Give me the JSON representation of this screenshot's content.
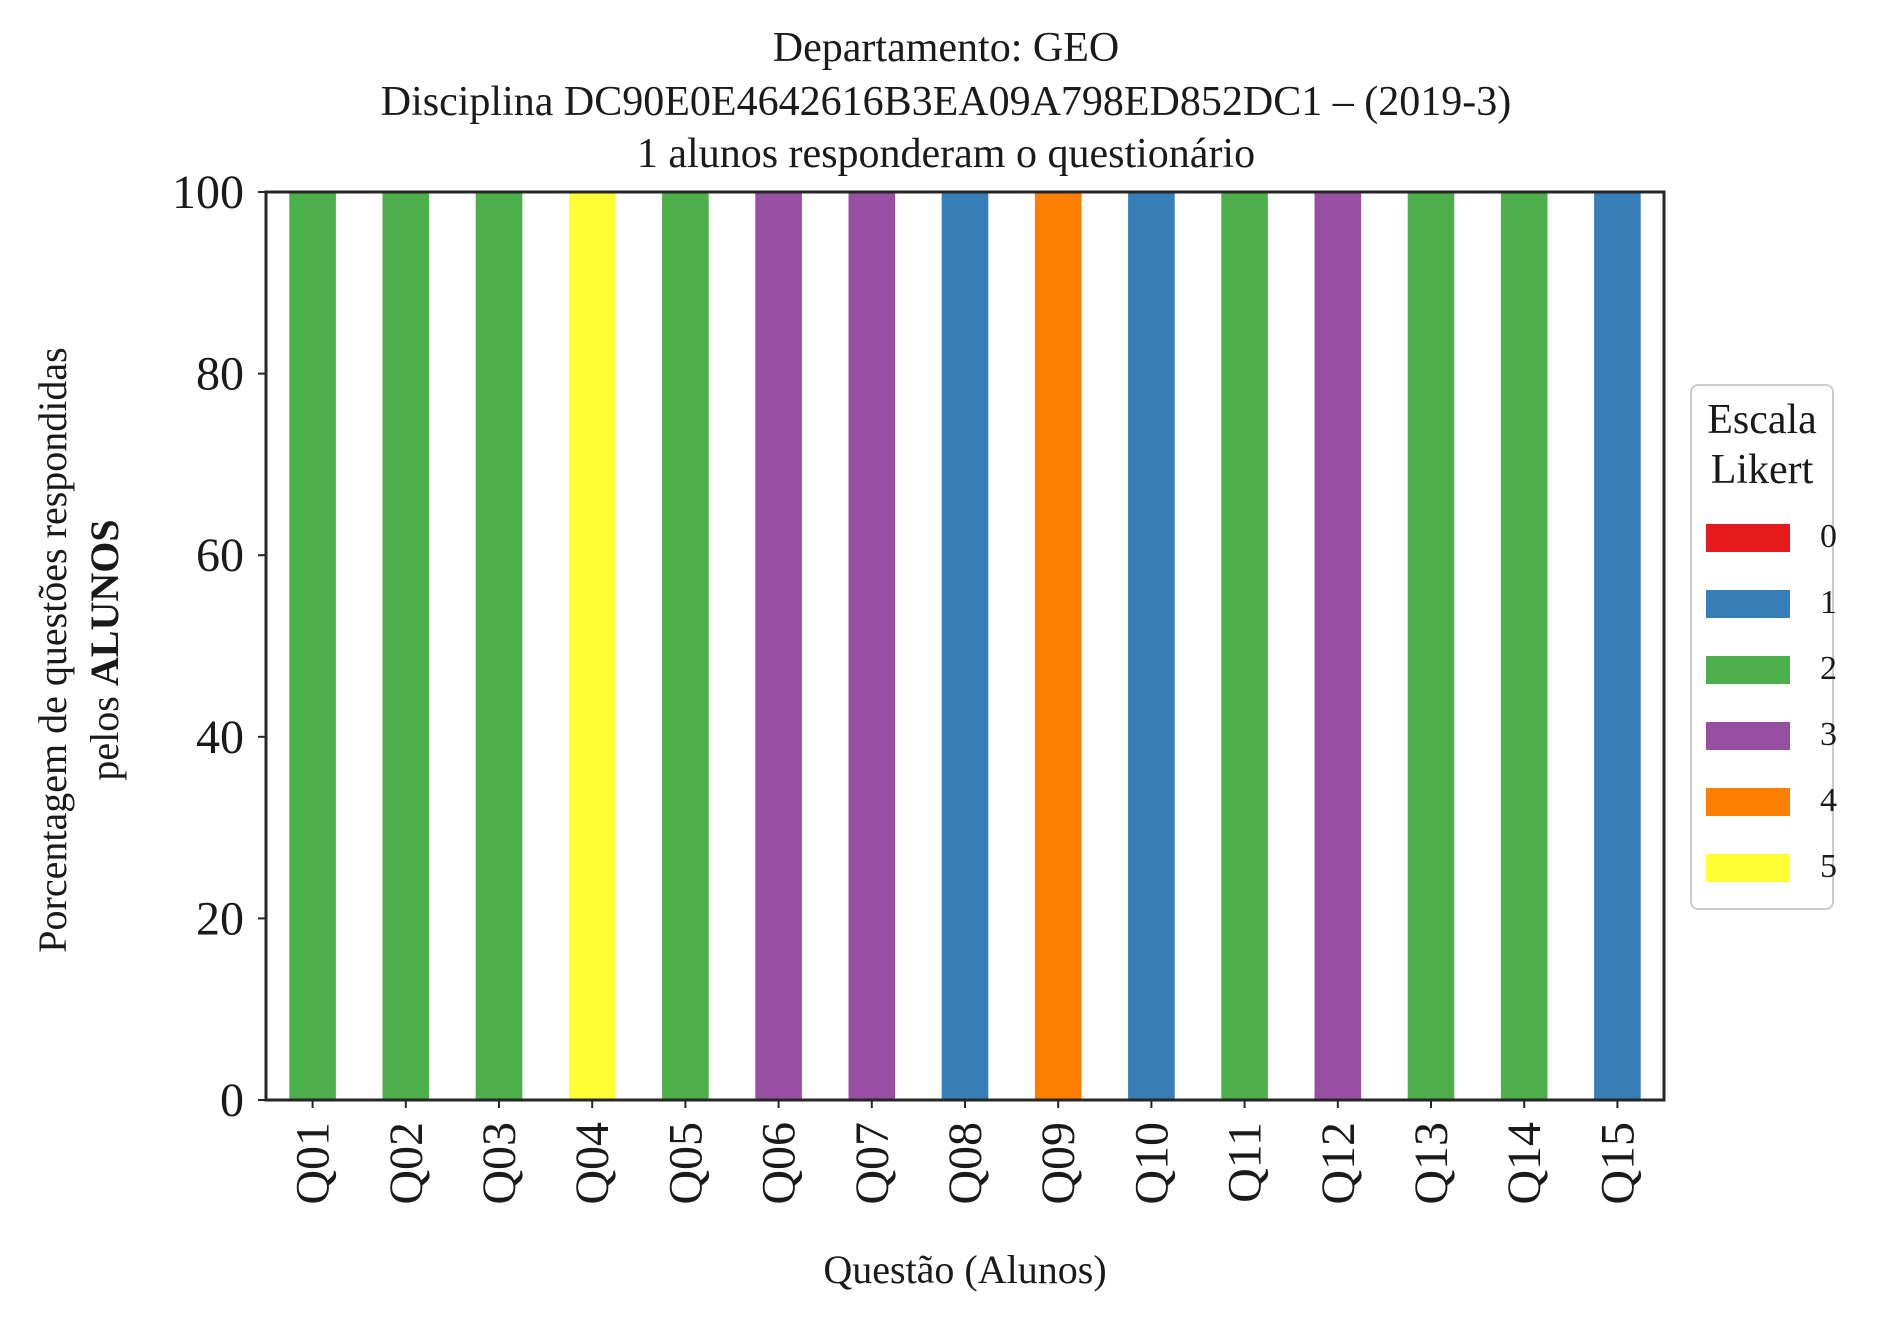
{
  "chart_data": {
    "type": "bar",
    "stacked": true,
    "title_lines": [
      "Departamento: GEO",
      "Disciplina DC90E0E4642616B3EA09A798ED852DC1 – (2019-3)",
      "1 alunos responderam o questionário"
    ],
    "xlabel": "Questão (Alunos)",
    "ylabel_line1": "Porcentagem de questões respondidas",
    "ylabel_line2_prefix": "pelos ",
    "ylabel_line2_bold": "ALUNOS",
    "ylim": [
      0,
      100
    ],
    "yticks": [
      0,
      20,
      40,
      60,
      80,
      100
    ],
    "categories": [
      "Q01",
      "Q02",
      "Q03",
      "Q04",
      "Q05",
      "Q06",
      "Q07",
      "Q08",
      "Q09",
      "Q10",
      "Q11",
      "Q12",
      "Q13",
      "Q14",
      "Q15"
    ],
    "bar_scale": [
      2,
      2,
      2,
      5,
      2,
      3,
      3,
      1,
      4,
      1,
      2,
      3,
      2,
      2,
      1
    ],
    "value_per_bar": 100,
    "legend": {
      "title_lines": [
        "Escala",
        "Likert"
      ],
      "placement": "right-center",
      "items": [
        {
          "label": "0",
          "color": "#e41a1c"
        },
        {
          "label": "1",
          "color": "#377eb8"
        },
        {
          "label": "2",
          "color": "#4daf4a"
        },
        {
          "label": "3",
          "color": "#984ea3"
        },
        {
          "label": "4",
          "color": "#ff7f00"
        },
        {
          "label": "5",
          "color": "#ffff33"
        }
      ]
    },
    "grid": false
  }
}
